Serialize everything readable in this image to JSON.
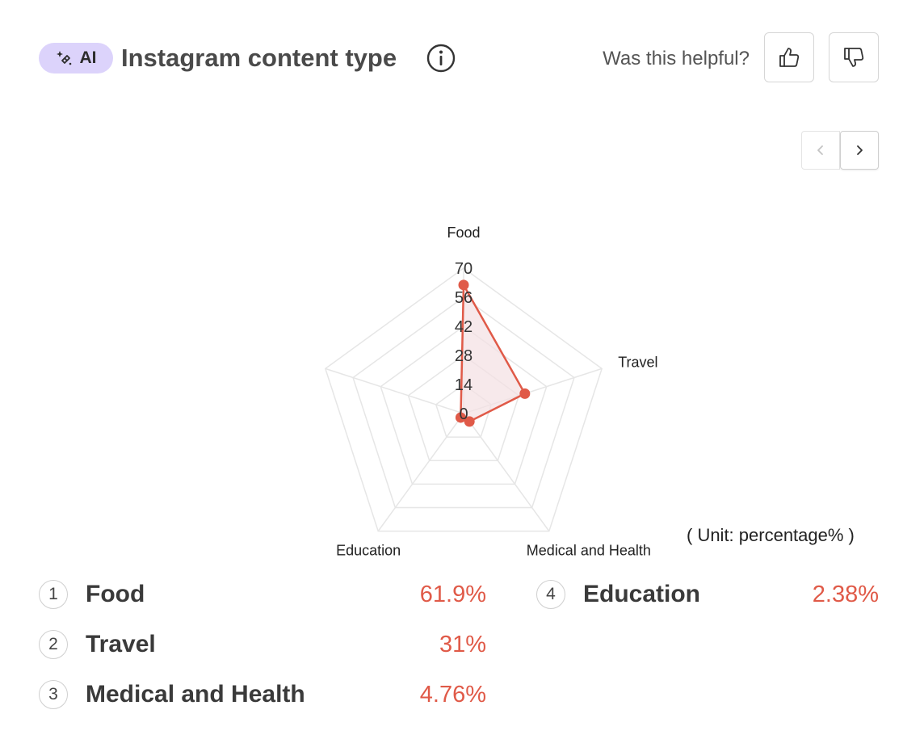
{
  "header": {
    "badge_label": "AI",
    "title": "Instagram content type",
    "helpful_prompt": "Was this helpful?"
  },
  "icons": {
    "badge": "sparkle-icon",
    "info": "info-icon",
    "vote_up": "thumbs-up-icon",
    "vote_down": "thumbs-down-icon",
    "pager_prev": "chevron-left-icon",
    "pager_next": "chevron-right-icon"
  },
  "colors": {
    "accent": "#e05a48",
    "badge_bg": "#dcd3fb",
    "grid": "#e6e6e6",
    "area_fill": "#f3dfe3"
  },
  "unit_note": "( Unit: percentage% )",
  "chart_data": {
    "type": "radar",
    "categories": [
      "Food",
      "Travel",
      "Medical and Health",
      "Education"
    ],
    "values": [
      61.9,
      31,
      4.76,
      2.38
    ],
    "rlim": [
      0,
      70
    ],
    "ticks": [
      "0",
      "14",
      "28",
      "42",
      "56",
      "70"
    ],
    "grid": true
  },
  "legend": [
    {
      "rank": "1",
      "name": "Food",
      "value": "61.9%"
    },
    {
      "rank": "2",
      "name": "Travel",
      "value": "31%"
    },
    {
      "rank": "3",
      "name": "Medical and Health",
      "value": "4.76%"
    },
    {
      "rank": "4",
      "name": "Education",
      "value": "2.38%"
    }
  ]
}
